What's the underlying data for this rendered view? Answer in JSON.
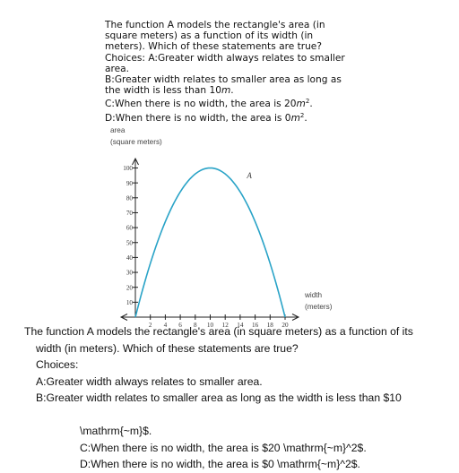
{
  "question1": {
    "line1": "The function A models the rectangle's area (in",
    "line2": "square meters) as a function of its width (in",
    "line3": "meters). Which of these statements are true?",
    "line4": "Choices: A:Greater width always relates to smaller",
    "line5": "area.",
    "line6": "B:Greater width relates to smaller area as long as",
    "line7_pre": "the width is less than 10",
    "line7_unit": "m",
    "line7_post": ".",
    "line8_pre": "C:When there is no width, the area is 20",
    "line8_unit": "m",
    "line8_sup": "2",
    "line8_post": ".",
    "line9_pre": "D:When there is no width, the area is 0",
    "line9_unit": "m",
    "line9_sup": "2",
    "line9_post": "."
  },
  "chart_data": {
    "type": "line",
    "title": "",
    "ylabel_line1": "area",
    "ylabel_line2": "(square meters)",
    "xlabel_line1": "width",
    "xlabel_line2": "(meters)",
    "series": [
      {
        "name": "A",
        "x": [
          0,
          2,
          4,
          6,
          8,
          10,
          12,
          14,
          16,
          18,
          20
        ],
        "y": [
          0,
          36,
          64,
          84,
          96,
          100,
          96,
          84,
          64,
          36,
          0
        ]
      }
    ],
    "x_ticks": [
      "2",
      "4",
      "6",
      "8",
      "10",
      "12",
      "14",
      "16",
      "18",
      "20"
    ],
    "y_ticks": [
      "10",
      "20",
      "30",
      "40",
      "50",
      "60",
      "70",
      "80",
      "90",
      "100"
    ],
    "xlim": [
      0,
      20
    ],
    "ylim": [
      0,
      100
    ],
    "curve_color": "#29a3c7",
    "grid": false
  },
  "question2": {
    "line1": "The function A models the rectangle's area (in square meters) as a function of its",
    "line2": "width (in meters). Which of these statements are true?",
    "line3": "Choices:",
    "line4": "A:Greater width always relates to smaller area.",
    "line5": "B:Greater width relates to smaller area as long as the width is less than $10",
    "line6": "\\mathrm{~m}$.",
    "line7": "C:When there is no width, the area is $20 \\mathrm{~m}^2$.",
    "line8": "D:When there is no width, the area is $0 \\mathrm{~m}^2$."
  }
}
